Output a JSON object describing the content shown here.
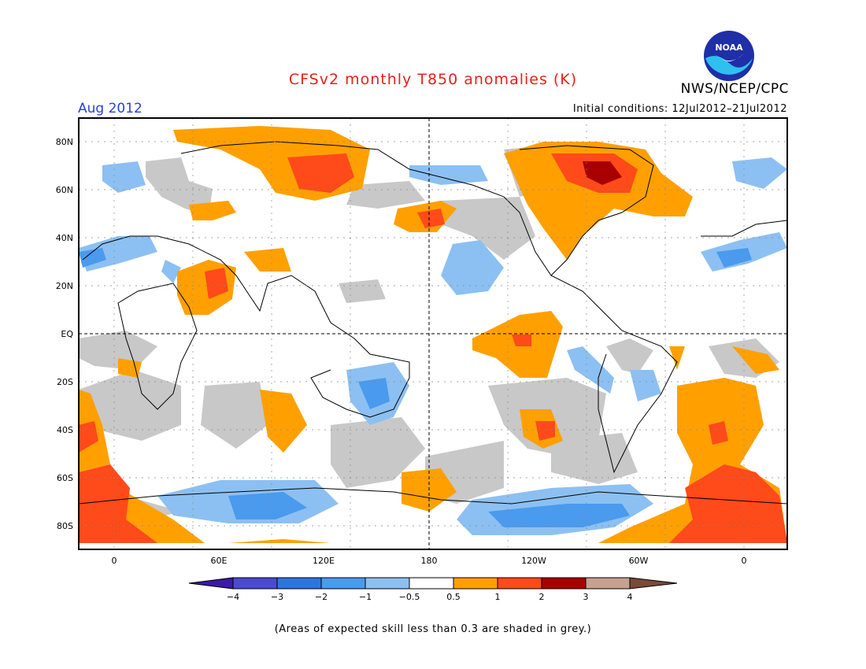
{
  "title": "CFSv2 monthly T850 anomalies (K)",
  "month_label": "Aug 2012",
  "initial_conditions": "Initial conditions: 12Jul2012–21Jul2012",
  "organization": "NWS/NCEP/CPC",
  "logo_text": "NOAA",
  "footnote": "(Areas of expected skill less than 0.3 are shaded in grey.)",
  "map": {
    "lat_labels": [
      "80N",
      "60N",
      "40N",
      "20N",
      "EQ",
      "20S",
      "40S",
      "60S",
      "80S"
    ],
    "lon_labels": [
      "0",
      "60E",
      "120E",
      "180",
      "120W",
      "60W",
      "0"
    ]
  },
  "colorbar": {
    "labels": [
      "−4",
      "−3",
      "−2",
      "−1",
      "−0.5",
      "0.5",
      "1",
      "2",
      "3",
      "4"
    ],
    "colors": [
      "#3a1aa6",
      "#4a4ad2",
      "#2f74de",
      "#4a9aee",
      "#8cc0f2",
      "#ffffff",
      "#ffa000",
      "#ff4a1a",
      "#a80000",
      "#c8a090",
      "#7a4a3a"
    ]
  },
  "colors": {
    "title": "#e8201a",
    "month": "#2a3fd6",
    "grey_skill": "#c8c8c8",
    "light_blue": "#8cc0f2",
    "mid_blue": "#4a9aee",
    "orange": "#ffa000",
    "red_orange": "#ff4a1a",
    "dark_red": "#a80000"
  }
}
